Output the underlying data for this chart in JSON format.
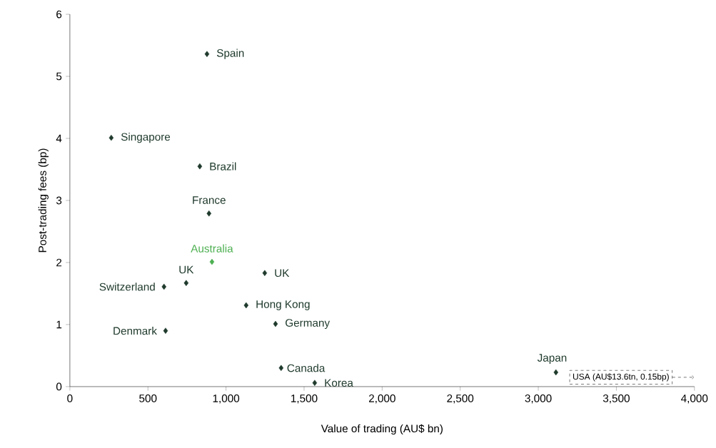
{
  "chart_data": {
    "type": "scatter",
    "xlabel": "Value of trading (AU$ bn)",
    "ylabel": "Post-trading fees (bp)",
    "xlim": [
      0,
      4000
    ],
    "ylim": [
      0,
      6
    ],
    "xticks": [
      0,
      500,
      {
        "value": 1000,
        "label": "1,000"
      },
      {
        "value": 1500,
        "label": "1,500"
      },
      {
        "value": 2000,
        "label": "2,000"
      },
      {
        "value": 2500,
        "label": "2,500"
      },
      {
        "value": 3000,
        "label": "3,000"
      },
      {
        "value": 3500,
        "label": "3,500"
      },
      {
        "value": 4000,
        "label": "4,000"
      }
    ],
    "yticks": [
      0,
      1,
      2,
      3,
      4,
      5,
      6
    ],
    "grid": false,
    "marker": "diamond",
    "series": [
      {
        "name": "Spain",
        "color": "#1f3a2c",
        "x": [
          878
        ],
        "values": [
          5.36
        ]
      },
      {
        "name": "Singapore",
        "color": "#1f3a2c",
        "x": [
          265
        ],
        "values": [
          4.01
        ]
      },
      {
        "name": "Brazil",
        "color": "#1f3a2c",
        "x": [
          832
        ],
        "values": [
          3.55
        ]
      },
      {
        "name": "France",
        "color": "#1f3a2c",
        "x": [
          891
        ],
        "values": [
          2.79
        ]
      },
      {
        "name": "Australia",
        "color": "#4caf50",
        "x": [
          910
        ],
        "values": [
          2.01
        ]
      },
      {
        "name": "UK",
        "color": "#1f3a2c",
        "x": [
          745
        ],
        "values": [
          1.67
        ]
      },
      {
        "name": "Switzerland",
        "color": "#1f3a2c",
        "x": [
          603
        ],
        "values": [
          1.61
        ]
      },
      {
        "name": "UK",
        "color": "#1f3a2c",
        "x": [
          1248
        ],
        "values": [
          1.83
        ]
      },
      {
        "name": "Hong Kong",
        "color": "#1f3a2c",
        "x": [
          1129
        ],
        "values": [
          1.31
        ]
      },
      {
        "name": "Germany",
        "color": "#1f3a2c",
        "x": [
          1317
        ],
        "values": [
          1.01
        ]
      },
      {
        "name": "Denmark",
        "color": "#1f3a2c",
        "x": [
          613
        ],
        "values": [
          0.9
        ]
      },
      {
        "name": "Canada",
        "color": "#1f3a2c",
        "x": [
          1353
        ],
        "values": [
          0.3
        ]
      },
      {
        "name": "Korea",
        "color": "#1f3a2c",
        "x": [
          1568
        ],
        "values": [
          0.06
        ]
      },
      {
        "name": "Japan",
        "color": "#1f3a2c",
        "x": [
          3113
        ],
        "values": [
          0.23
        ]
      }
    ],
    "annotations": [
      "USA (AU$13.6tn, 0.15bp)"
    ]
  }
}
